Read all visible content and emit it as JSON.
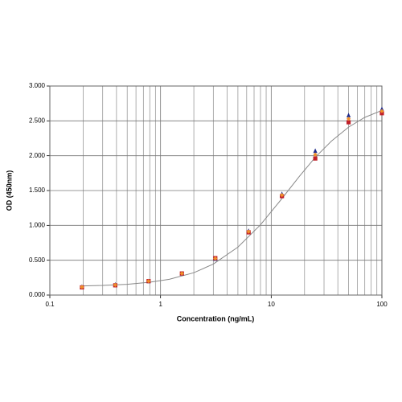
{
  "chart_data": {
    "type": "scatter",
    "xlabel": "Concentration (ng/mL)",
    "ylabel": "OD (450nm)",
    "xscale": "log",
    "grid": true,
    "xlim": [
      0.1,
      100
    ],
    "xticks": [
      0.1,
      1,
      10,
      100
    ],
    "xminorticks": [
      0.2,
      0.3,
      0.4,
      0.5,
      0.6,
      0.7,
      0.8,
      0.9,
      2,
      3,
      4,
      5,
      6,
      7,
      8,
      9,
      20,
      30,
      40,
      50,
      60,
      70,
      80,
      90
    ],
    "ylim": [
      0,
      3
    ],
    "yticks": [
      {
        "value": 0,
        "label": "0.000"
      },
      {
        "value": 0.5,
        "label": "0.500"
      },
      {
        "value": 1,
        "label": "1.000"
      },
      {
        "value": 1.5,
        "label": "1.500"
      },
      {
        "value": 2,
        "label": "2.000"
      },
      {
        "value": 2.5,
        "label": "2.500"
      },
      {
        "value": 3,
        "label": "3.000"
      }
    ],
    "x": [
      0.195,
      0.39,
      0.78,
      1.56,
      3.125,
      6.25,
      12.5,
      25,
      50,
      100
    ],
    "series": [
      {
        "color": "#1f2a8a",
        "marker": "triangle",
        "values": [
          0.12,
          0.15,
          0.2,
          0.31,
          0.52,
          0.92,
          1.45,
          2.07,
          2.58,
          2.67
        ]
      },
      {
        "color": "#c0202a",
        "marker": "square",
        "values": [
          0.11,
          0.14,
          0.2,
          0.31,
          0.53,
          0.9,
          1.42,
          1.96,
          2.48,
          2.61
        ]
      },
      {
        "color": "#f0902a",
        "marker": "diamond",
        "values": [
          0.115,
          0.145,
          0.2,
          0.31,
          0.525,
          0.91,
          1.435,
          2.015,
          2.53,
          2.64
        ]
      }
    ],
    "curve": {
      "color": "#888888",
      "x": [
        0.2,
        0.3,
        0.5,
        0.8,
        1.2,
        2,
        3,
        5,
        8,
        12,
        18,
        25,
        35,
        50,
        70,
        100
      ],
      "values": [
        0.131,
        0.138,
        0.155,
        0.185,
        0.227,
        0.321,
        0.445,
        0.688,
        1.009,
        1.35,
        1.705,
        1.977,
        2.21,
        2.41,
        2.55,
        2.65
      ]
    }
  }
}
